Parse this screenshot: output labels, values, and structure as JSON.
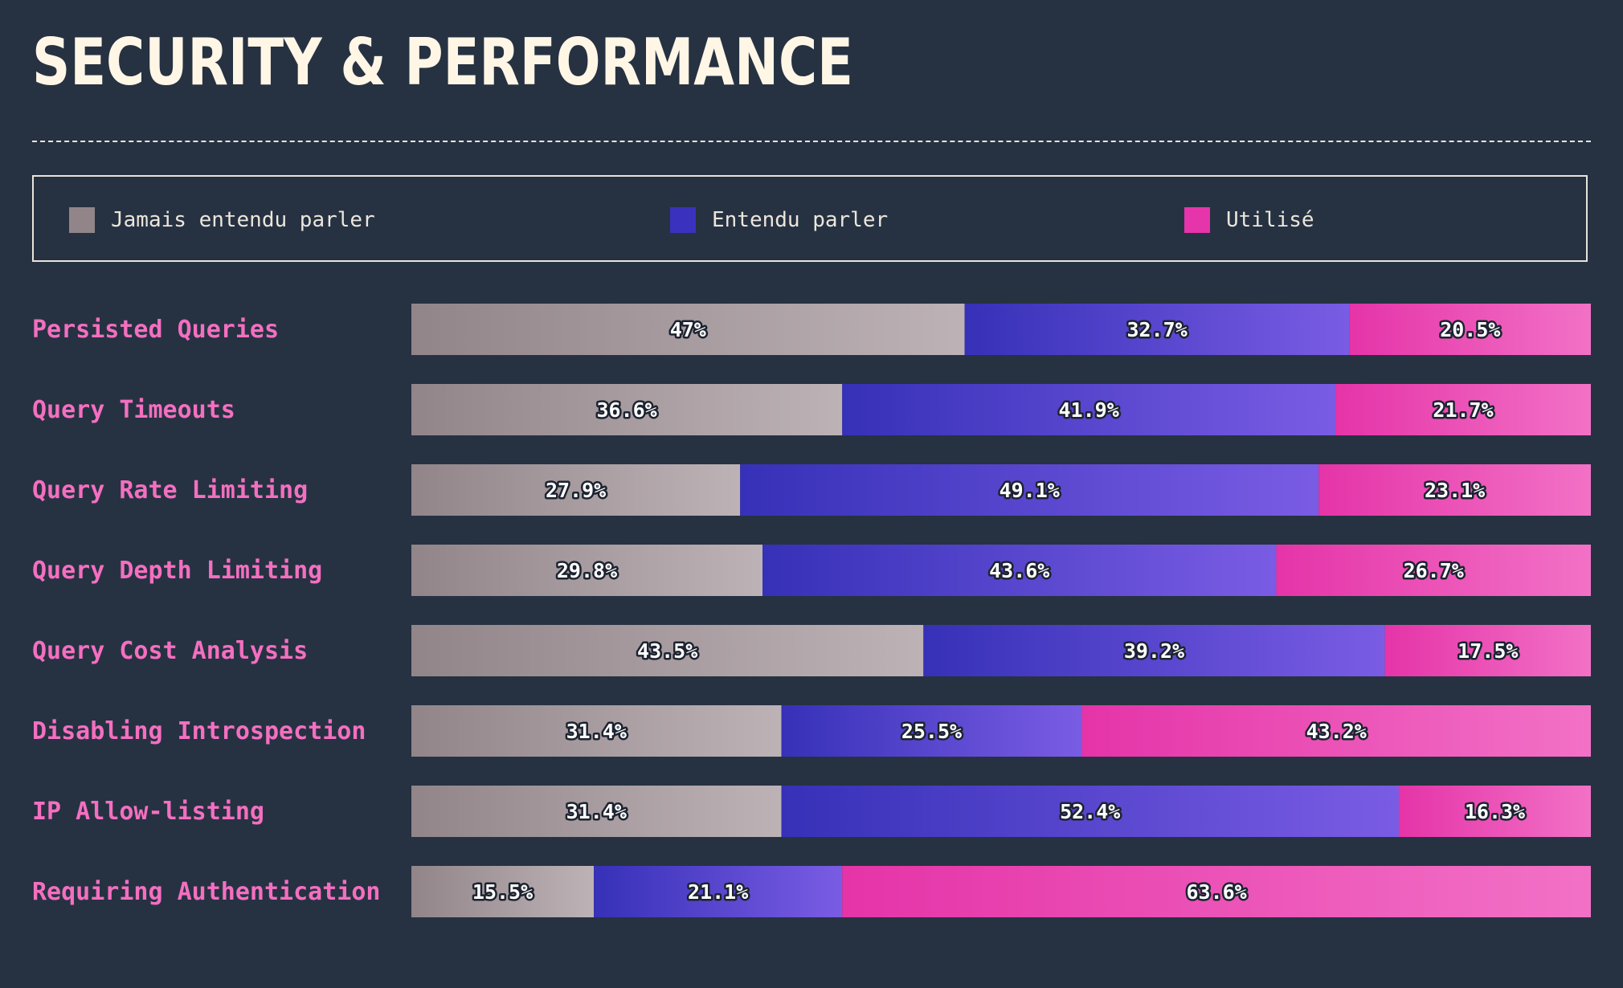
{
  "title": "SECURITY & PERFORMANCE",
  "colors": {
    "background": "#263242",
    "row_label": "#f46fc0",
    "never_heard": [
      "#918589",
      "#bdb2b5"
    ],
    "heard": [
      "#3631b8",
      "#7a5ce4"
    ],
    "used": [
      "#e534a8",
      "#f271c6"
    ]
  },
  "legend": [
    {
      "label": "Jamais entendu parler",
      "color": "#918589"
    },
    {
      "label": "Entendu parler",
      "color": "#3a32be"
    },
    {
      "label": "Utilisé",
      "color": "#e634ab"
    }
  ],
  "chart_data": {
    "type": "bar",
    "orientation": "horizontal",
    "stacked": true,
    "normalized": true,
    "categories": [
      "Persisted Queries",
      "Query Timeouts",
      "Query Rate Limiting",
      "Query Depth Limiting",
      "Query Cost Analysis",
      "Disabling Introspection",
      "IP Allow-listing",
      "Requiring Authentication"
    ],
    "series": [
      {
        "name": "Jamais entendu parler",
        "values": [
          47,
          36.6,
          27.9,
          29.8,
          43.5,
          31.4,
          31.4,
          15.5
        ],
        "labels": [
          "47%",
          "36.6%",
          "27.9%",
          "29.8%",
          "43.5%",
          "31.4%",
          "31.4%",
          "15.5%"
        ]
      },
      {
        "name": "Entendu parler",
        "values": [
          32.7,
          41.9,
          49.1,
          43.6,
          39.2,
          25.5,
          52.4,
          21.1
        ],
        "labels": [
          "32.7%",
          "41.9%",
          "49.1%",
          "43.6%",
          "39.2%",
          "25.5%",
          "52.4%",
          "21.1%"
        ]
      },
      {
        "name": "Utilisé",
        "values": [
          20.5,
          21.7,
          23.1,
          26.7,
          17.5,
          43.2,
          16.3,
          63.6
        ],
        "labels": [
          "20.5%",
          "21.7%",
          "23.1%",
          "26.7%",
          "17.5%",
          "43.2%",
          "16.3%",
          "63.6%"
        ]
      }
    ],
    "legend_position": "top",
    "grid": false
  }
}
